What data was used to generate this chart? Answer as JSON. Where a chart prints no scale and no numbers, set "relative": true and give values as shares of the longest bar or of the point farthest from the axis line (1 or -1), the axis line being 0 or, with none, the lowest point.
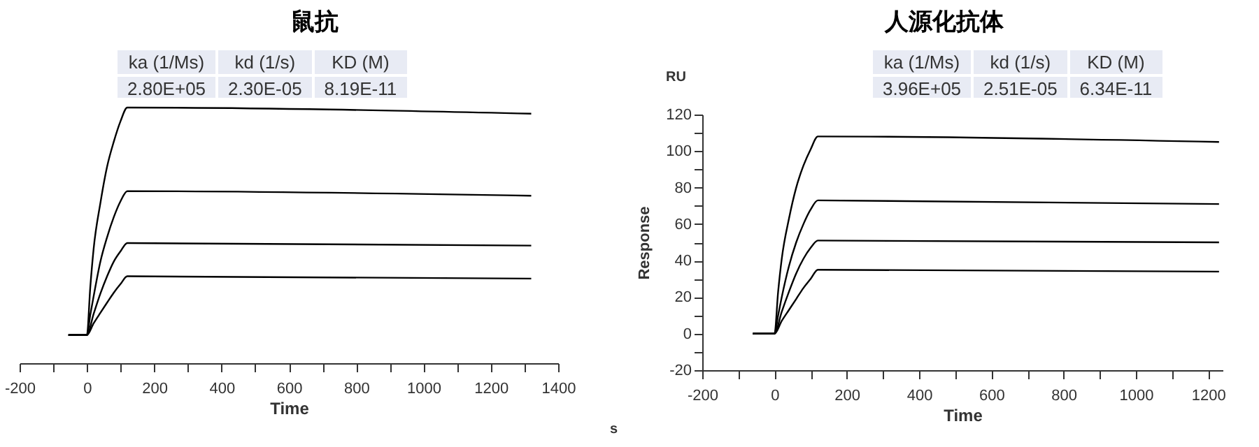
{
  "chart_data": [
    {
      "type": "line",
      "title": "鼠抗",
      "xlabel": "Time",
      "relative": true,
      "grid": false,
      "marker": "none",
      "line_style": "solid",
      "xlim": [
        -200,
        1400
      ],
      "xticks": [
        -200,
        {
          "value": -100,
          "label": null
        },
        0,
        {
          "value": 100,
          "label": null
        },
        200,
        {
          "value": 300,
          "label": null
        },
        400,
        {
          "value": 500,
          "label": null
        },
        600,
        {
          "value": 700,
          "label": null
        },
        800,
        {
          "value": 900,
          "label": null
        },
        1000,
        {
          "value": 1100,
          "label": null
        },
        1200,
        {
          "value": 1300,
          "label": null
        },
        1400
      ],
      "annotations": [
        "ka (1/Ms)",
        "kd (1/s)",
        "KD (M)",
        "2.80E+05",
        "2.30E-05",
        "8.19E-11",
        "s"
      ],
      "series": [
        {
          "color": "#000000",
          "x": [
            -55,
            0,
            10,
            20,
            40,
            60,
            80,
            100,
            120,
            1320
          ],
          "values": [
            0.11,
            0.11,
            0.297,
            0.448,
            0.626,
            0.769,
            0.867,
            0.947,
            1.0,
            0.976
          ]
        },
        {
          "color": "#000000",
          "x": [
            -55,
            0,
            10,
            20,
            40,
            60,
            80,
            100,
            120,
            1320
          ],
          "values": [
            0.11,
            0.11,
            0.189,
            0.262,
            0.397,
            0.493,
            0.572,
            0.634,
            0.673,
            0.655
          ]
        },
        {
          "color": "#000000",
          "x": [
            -55,
            0,
            20,
            40,
            60,
            80,
            100,
            120,
            1320
          ],
          "values": [
            0.11,
            0.11,
            0.193,
            0.272,
            0.34,
            0.398,
            0.438,
            0.47,
            0.46
          ]
        },
        {
          "color": "#000000",
          "x": [
            -55,
            0,
            20,
            40,
            60,
            80,
            100,
            120,
            1320
          ],
          "values": [
            0.11,
            0.11,
            0.156,
            0.197,
            0.237,
            0.276,
            0.31,
            0.34,
            0.331
          ]
        }
      ]
    },
    {
      "type": "line",
      "title": "人源化抗体",
      "xlabel": "Time",
      "ylabel": "Response",
      "grid": false,
      "marker": "none",
      "line_style": "solid",
      "xlim": [
        -200,
        1240
      ],
      "xticks": [
        -200,
        {
          "value": -100,
          "label": null
        },
        0,
        {
          "value": 100,
          "label": null
        },
        200,
        {
          "value": 300,
          "label": null
        },
        400,
        {
          "value": 500,
          "label": null
        },
        600,
        {
          "value": 700,
          "label": null
        },
        800,
        {
          "value": 900,
          "label": null
        },
        1000,
        {
          "value": 1100,
          "label": null
        },
        1200
      ],
      "ylim": [
        -20,
        120
      ],
      "yticks": [
        -20,
        {
          "value": -10,
          "label": null
        },
        0,
        {
          "value": 10,
          "label": null
        },
        20,
        {
          "value": 30,
          "label": null
        },
        40,
        {
          "value": 50,
          "label": null
        },
        60,
        {
          "value": 70,
          "label": null
        },
        80,
        {
          "value": 90,
          "label": null
        },
        100,
        {
          "value": 110,
          "label": null
        },
        120
      ],
      "annotations": [
        "ka (1/Ms)",
        "kd (1/s)",
        "KD (M)",
        "3.96E+05",
        "2.51E-05",
        "6.34E-11",
        "RU"
      ],
      "series": [
        {
          "color": "#000000",
          "x": [
            -60,
            0,
            10,
            20,
            40,
            60,
            80,
            100,
            120,
            1230
          ],
          "values": [
            0,
            0,
            23,
            41,
            63,
            80,
            92,
            101,
            108,
            105
          ]
        },
        {
          "color": "#000000",
          "x": [
            -60,
            0,
            10,
            20,
            40,
            60,
            80,
            100,
            120,
            1230
          ],
          "values": [
            0,
            0,
            10,
            20,
            37,
            50,
            60,
            68,
            73,
            71
          ]
        },
        {
          "color": "#000000",
          "x": [
            -60,
            0,
            20,
            40,
            60,
            80,
            100,
            120,
            1230
          ],
          "values": [
            0,
            0,
            12,
            23,
            33,
            41,
            47,
            51,
            50
          ]
        },
        {
          "color": "#000000",
          "x": [
            -60,
            0,
            20,
            40,
            60,
            80,
            100,
            120,
            1230
          ],
          "values": [
            0,
            0,
            7,
            13,
            19,
            25,
            30,
            35,
            34
          ]
        }
      ]
    }
  ]
}
